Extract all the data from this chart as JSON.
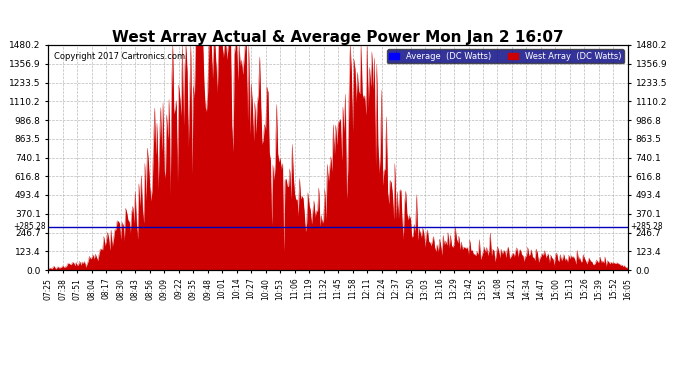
{
  "title": "West Array Actual & Average Power Mon Jan 2 16:07",
  "copyright": "Copyright 2017 Cartronics.com",
  "ymax": 1480.2,
  "ymin": 0.0,
  "yticks": [
    0.0,
    123.4,
    246.7,
    370.1,
    493.4,
    616.8,
    740.1,
    863.5,
    986.8,
    1110.2,
    1233.5,
    1356.9,
    1480.2
  ],
  "average_line": 285.28,
  "bg_color": "#ffffff",
  "grid_color": "#aaaaaa",
  "area_color": "#cc0000",
  "average_color": "#0000bb",
  "legend_bg": "#000080",
  "legend_avg_color": "#0000ff",
  "legend_west_color": "#cc0000",
  "title_fontsize": 11,
  "x_tick_labels": [
    "07:25",
    "07:38",
    "07:51",
    "08:04",
    "08:17",
    "08:30",
    "08:43",
    "08:56",
    "09:09",
    "09:22",
    "09:35",
    "09:48",
    "10:01",
    "10:14",
    "10:27",
    "10:40",
    "10:53",
    "11:06",
    "11:19",
    "11:32",
    "11:45",
    "11:58",
    "12:11",
    "12:24",
    "12:37",
    "12:50",
    "13:03",
    "13:16",
    "13:29",
    "13:42",
    "13:55",
    "14:08",
    "14:21",
    "14:34",
    "14:47",
    "15:00",
    "15:13",
    "15:26",
    "15:39",
    "15:52",
    "16:05"
  ]
}
